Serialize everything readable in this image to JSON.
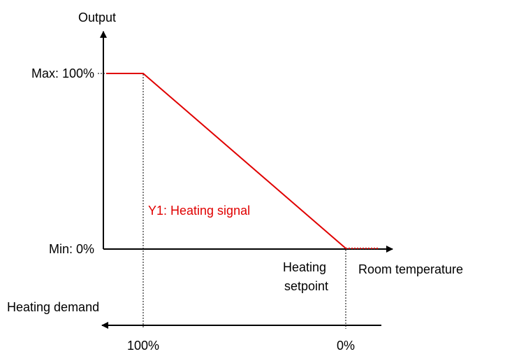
{
  "axes": {
    "y_label": "Output",
    "x_label": "Room temperature",
    "max_label": "Max: 100%",
    "min_label": "Min: 0%"
  },
  "signal": {
    "label": "Y1: Heating signal"
  },
  "setpoint": {
    "line1": "Heating",
    "line2": "setpoint"
  },
  "demand": {
    "label": "Heating demand",
    "left_label": "100%",
    "right_label": "0%"
  }
}
